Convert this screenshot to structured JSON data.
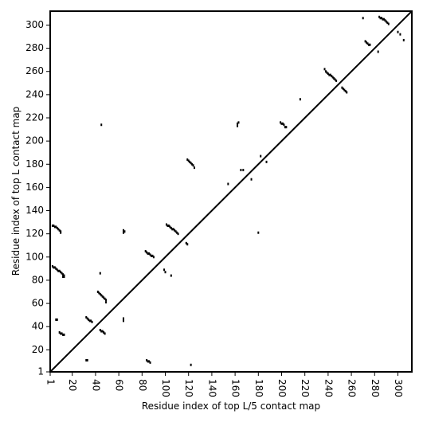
{
  "chart_data": {
    "type": "scatter",
    "xlabel": "Residue index of top L/5 contact map",
    "ylabel": "Residue index of top L contact map",
    "color": "#000000",
    "diagonal": true,
    "xlim": [
      1,
      312
    ],
    "ylim": [
      1,
      312
    ],
    "xticks": [
      1,
      20,
      40,
      60,
      80,
      100,
      120,
      140,
      160,
      180,
      200,
      220,
      240,
      260,
      280,
      300
    ],
    "yticks": [
      1,
      20,
      40,
      60,
      80,
      100,
      120,
      140,
      160,
      180,
      200,
      220,
      240,
      260,
      280,
      300
    ],
    "x": [
      3,
      4,
      5,
      6,
      7,
      8,
      9,
      10,
      10,
      3,
      4,
      5,
      6,
      7,
      8,
      9,
      10,
      11,
      12,
      13,
      13,
      12,
      6,
      7,
      9,
      10,
      11,
      12,
      13,
      32,
      33,
      34,
      35,
      36,
      37,
      42,
      43,
      44,
      45,
      46,
      47,
      48,
      49,
      49,
      44,
      45,
      64,
      64,
      65,
      83,
      84,
      85,
      86,
      87,
      88,
      89,
      90,
      101,
      102,
      103,
      104,
      105,
      106,
      107,
      108,
      109,
      110,
      111,
      119,
      120,
      121,
      122,
      123,
      124,
      125,
      162,
      163,
      162,
      165,
      167,
      174,
      154,
      182,
      187,
      199,
      200,
      201,
      202,
      203,
      204,
      216,
      237,
      238,
      239,
      240,
      241,
      242,
      243,
      244,
      245,
      246,
      247,
      252,
      253,
      254,
      255,
      256,
      270,
      272,
      273,
      274,
      275,
      276,
      284,
      285,
      286,
      287,
      288,
      289,
      290,
      291,
      292,
      283,
      300,
      302,
      305,
      32,
      33,
      84,
      85,
      86,
      87,
      122,
      99,
      100,
      105,
      118,
      119,
      180,
      64,
      64,
      44,
      45,
      46,
      47,
      48
    ],
    "y": [
      127,
      127,
      126,
      126,
      125,
      124,
      123,
      122,
      121,
      92,
      91,
      91,
      90,
      89,
      88,
      88,
      87,
      86,
      85,
      84,
      83,
      83,
      46,
      46,
      35,
      34,
      34,
      33,
      33,
      48,
      47,
      46,
      45,
      45,
      44,
      70,
      69,
      68,
      67,
      66,
      65,
      64,
      63,
      61,
      86,
      214,
      123,
      121,
      122,
      105,
      104,
      103,
      103,
      102,
      101,
      101,
      100,
      128,
      127,
      127,
      126,
      125,
      124,
      124,
      123,
      122,
      121,
      120,
      184,
      183,
      182,
      181,
      180,
      179,
      177,
      215,
      216,
      213,
      175,
      175,
      167,
      163,
      187,
      182,
      216,
      215,
      215,
      214,
      212,
      212,
      236,
      262,
      260,
      259,
      258,
      257,
      257,
      256,
      255,
      254,
      253,
      252,
      246,
      245,
      244,
      243,
      242,
      306,
      286,
      285,
      284,
      283,
      283,
      307,
      306,
      306,
      305,
      305,
      304,
      303,
      302,
      301,
      277,
      294,
      292,
      287,
      11,
      11,
      11,
      10,
      10,
      9,
      7,
      89,
      87,
      84,
      112,
      111,
      121,
      45,
      47,
      37,
      36,
      36,
      35,
      34
    ]
  }
}
